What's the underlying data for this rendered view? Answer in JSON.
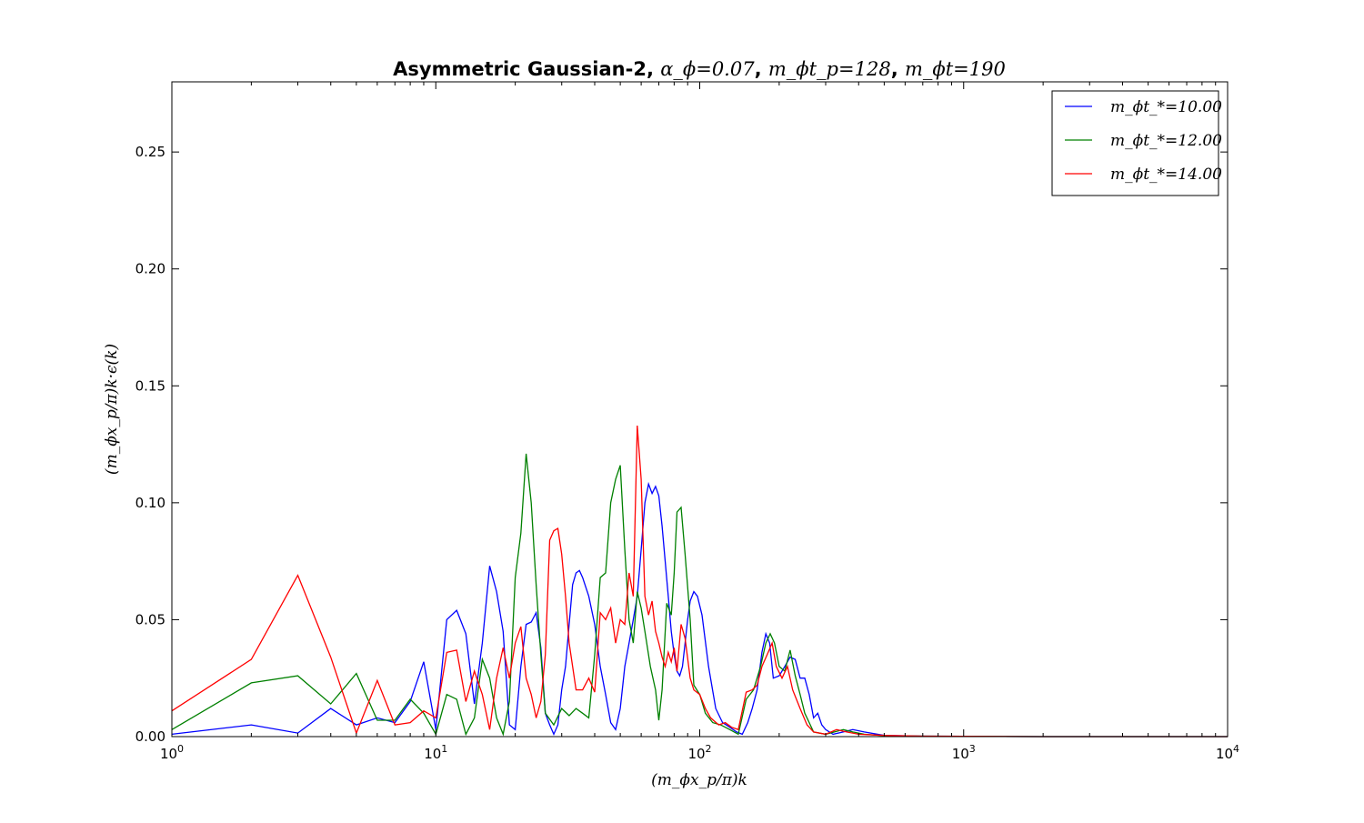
{
  "chart_data": {
    "type": "line",
    "title": "Asymmetric Gaussian-2, α_ϕ=0.07, m_ϕt_p=128, m_ϕt=190",
    "title_parts": {
      "prefix": "Asymmetric Gaussian-2, ",
      "param1": "α_ϕ=0.07",
      "sep1": ", ",
      "param2": "m_ϕt_p=128",
      "sep2": ", ",
      "param3": "m_ϕt=190"
    },
    "xlabel": "(m_ϕx_p/π)k",
    "ylabel": "(m_ϕx_p/π)k·ϵ(k)",
    "xscale": "log",
    "xlim": [
      1,
      10000
    ],
    "ylim": [
      0,
      0.28
    ],
    "x_ticks": [
      {
        "value": 1,
        "label": "10^0",
        "base": "10",
        "exp": "0"
      },
      {
        "value": 10,
        "label": "10^1",
        "base": "10",
        "exp": "1"
      },
      {
        "value": 100,
        "label": "10^2",
        "base": "10",
        "exp": "2"
      },
      {
        "value": 1000,
        "label": "10^3",
        "base": "10",
        "exp": "3"
      },
      {
        "value": 10000,
        "label": "10^4",
        "base": "10",
        "exp": "4"
      }
    ],
    "y_ticks": [
      {
        "value": 0.0,
        "label": "0.00"
      },
      {
        "value": 0.05,
        "label": "0.05"
      },
      {
        "value": 0.1,
        "label": "0.10"
      },
      {
        "value": 0.15,
        "label": "0.15"
      },
      {
        "value": 0.2,
        "label": "0.20"
      },
      {
        "value": 0.25,
        "label": "0.25"
      }
    ],
    "grid": false,
    "legend_position": "top-right",
    "series": [
      {
        "name": "m_ϕt_*=10.00",
        "color": "#0000ff",
        "points": [
          [
            1,
            0.001
          ],
          [
            2,
            0.005
          ],
          [
            3,
            0.0015
          ],
          [
            4,
            0.012
          ],
          [
            5,
            0.005
          ],
          [
            6,
            0.008
          ],
          [
            7,
            0.006
          ],
          [
            8,
            0.015
          ],
          [
            9,
            0.032
          ],
          [
            10,
            0.003
          ],
          [
            11,
            0.05
          ],
          [
            12,
            0.054
          ],
          [
            13,
            0.044
          ],
          [
            14,
            0.014
          ],
          [
            15,
            0.04
          ],
          [
            16,
            0.073
          ],
          [
            17,
            0.062
          ],
          [
            18,
            0.045
          ],
          [
            19,
            0.005
          ],
          [
            20,
            0.003
          ],
          [
            21,
            0.03
          ],
          [
            22,
            0.048
          ],
          [
            23,
            0.049
          ],
          [
            24,
            0.053
          ],
          [
            25,
            0.038
          ],
          [
            26,
            0.01
          ],
          [
            27,
            0.005
          ],
          [
            28,
            0.001
          ],
          [
            29,
            0.005
          ],
          [
            30,
            0.02
          ],
          [
            31,
            0.03
          ],
          [
            32,
            0.048
          ],
          [
            33,
            0.065
          ],
          [
            34,
            0.07
          ],
          [
            35,
            0.071
          ],
          [
            36,
            0.068
          ],
          [
            38,
            0.06
          ],
          [
            40,
            0.048
          ],
          [
            42,
            0.03
          ],
          [
            44,
            0.018
          ],
          [
            46,
            0.006
          ],
          [
            48,
            0.003
          ],
          [
            50,
            0.012
          ],
          [
            52,
            0.03
          ],
          [
            54,
            0.04
          ],
          [
            56,
            0.05
          ],
          [
            58,
            0.06
          ],
          [
            60,
            0.08
          ],
          [
            62,
            0.1
          ],
          [
            64,
            0.108
          ],
          [
            66,
            0.104
          ],
          [
            68,
            0.107
          ],
          [
            70,
            0.103
          ],
          [
            72,
            0.09
          ],
          [
            74,
            0.075
          ],
          [
            76,
            0.06
          ],
          [
            78,
            0.045
          ],
          [
            80,
            0.035
          ],
          [
            82,
            0.028
          ],
          [
            84,
            0.026
          ],
          [
            86,
            0.03
          ],
          [
            88,
            0.04
          ],
          [
            90,
            0.05
          ],
          [
            92,
            0.058
          ],
          [
            95,
            0.062
          ],
          [
            98,
            0.06
          ],
          [
            102,
            0.052
          ],
          [
            108,
            0.03
          ],
          [
            115,
            0.012
          ],
          [
            122,
            0.006
          ],
          [
            130,
            0.004
          ],
          [
            138,
            0.002
          ],
          [
            145,
            0.001
          ],
          [
            152,
            0.006
          ],
          [
            158,
            0.012
          ],
          [
            165,
            0.02
          ],
          [
            172,
            0.036
          ],
          [
            178,
            0.044
          ],
          [
            184,
            0.04
          ],
          [
            190,
            0.025
          ],
          [
            200,
            0.026
          ],
          [
            210,
            0.03
          ],
          [
            220,
            0.034
          ],
          [
            230,
            0.033
          ],
          [
            240,
            0.025
          ],
          [
            250,
            0.025
          ],
          [
            260,
            0.018
          ],
          [
            270,
            0.008
          ],
          [
            280,
            0.01
          ],
          [
            290,
            0.005
          ],
          [
            300,
            0.003
          ],
          [
            320,
            0.001
          ],
          [
            350,
            0.002
          ],
          [
            380,
            0.003
          ],
          [
            420,
            0.002
          ],
          [
            500,
            0.0005
          ],
          [
            700,
            0.0002
          ],
          [
            1000,
            0.0001
          ],
          [
            2000,
            0
          ],
          [
            10000,
            0
          ]
        ]
      },
      {
        "name": "m_ϕt_*=12.00",
        "color": "#008000",
        "points": [
          [
            1,
            0.003
          ],
          [
            2,
            0.023
          ],
          [
            3,
            0.026
          ],
          [
            4,
            0.014
          ],
          [
            5,
            0.027
          ],
          [
            6,
            0.007
          ],
          [
            7,
            0.007
          ],
          [
            8,
            0.016
          ],
          [
            9,
            0.01
          ],
          [
            10,
            0.001
          ],
          [
            11,
            0.018
          ],
          [
            12,
            0.016
          ],
          [
            13,
            0.001
          ],
          [
            14,
            0.008
          ],
          [
            15,
            0.033
          ],
          [
            16,
            0.025
          ],
          [
            17,
            0.008
          ],
          [
            18,
            0.001
          ],
          [
            19,
            0.015
          ],
          [
            20,
            0.068
          ],
          [
            21,
            0.087
          ],
          [
            22,
            0.121
          ],
          [
            23,
            0.1
          ],
          [
            24,
            0.065
          ],
          [
            25,
            0.035
          ],
          [
            26,
            0.01
          ],
          [
            28,
            0.005
          ],
          [
            30,
            0.012
          ],
          [
            32,
            0.009
          ],
          [
            34,
            0.012
          ],
          [
            36,
            0.01
          ],
          [
            38,
            0.008
          ],
          [
            40,
            0.035
          ],
          [
            42,
            0.068
          ],
          [
            44,
            0.07
          ],
          [
            46,
            0.1
          ],
          [
            48,
            0.11
          ],
          [
            50,
            0.116
          ],
          [
            52,
            0.08
          ],
          [
            54,
            0.05
          ],
          [
            56,
            0.04
          ],
          [
            58,
            0.062
          ],
          [
            60,
            0.055
          ],
          [
            62,
            0.045
          ],
          [
            65,
            0.03
          ],
          [
            68,
            0.02
          ],
          [
            70,
            0.007
          ],
          [
            72,
            0.02
          ],
          [
            75,
            0.057
          ],
          [
            78,
            0.052
          ],
          [
            80,
            0.07
          ],
          [
            82,
            0.096
          ],
          [
            85,
            0.098
          ],
          [
            88,
            0.078
          ],
          [
            92,
            0.05
          ],
          [
            95,
            0.022
          ],
          [
            100,
            0.018
          ],
          [
            105,
            0.01
          ],
          [
            112,
            0.006
          ],
          [
            120,
            0.005
          ],
          [
            130,
            0.003
          ],
          [
            140,
            0.001
          ],
          [
            150,
            0.016
          ],
          [
            160,
            0.02
          ],
          [
            170,
            0.03
          ],
          [
            178,
            0.04
          ],
          [
            185,
            0.044
          ],
          [
            192,
            0.04
          ],
          [
            200,
            0.03
          ],
          [
            210,
            0.028
          ],
          [
            220,
            0.037
          ],
          [
            230,
            0.026
          ],
          [
            240,
            0.018
          ],
          [
            250,
            0.01
          ],
          [
            260,
            0.006
          ],
          [
            270,
            0.002
          ],
          [
            300,
            0.001
          ],
          [
            350,
            0.003
          ],
          [
            380,
            0.002
          ],
          [
            420,
            0.001
          ],
          [
            500,
            0.0004
          ],
          [
            700,
            0.0002
          ],
          [
            1000,
            0.0001
          ],
          [
            2000,
            0
          ],
          [
            10000,
            0
          ]
        ]
      },
      {
        "name": "m_ϕt_*=14.00",
        "color": "#ff0000",
        "points": [
          [
            1,
            0.011
          ],
          [
            2,
            0.033
          ],
          [
            3,
            0.069
          ],
          [
            4,
            0.034
          ],
          [
            5,
            0.0015
          ],
          [
            6,
            0.024
          ],
          [
            7,
            0.005
          ],
          [
            8,
            0.006
          ],
          [
            9,
            0.011
          ],
          [
            10,
            0.008
          ],
          [
            11,
            0.036
          ],
          [
            12,
            0.037
          ],
          [
            13,
            0.015
          ],
          [
            14,
            0.028
          ],
          [
            15,
            0.018
          ],
          [
            16,
            0.003
          ],
          [
            17,
            0.025
          ],
          [
            18,
            0.038
          ],
          [
            19,
            0.025
          ],
          [
            20,
            0.04
          ],
          [
            21,
            0.047
          ],
          [
            22,
            0.025
          ],
          [
            23,
            0.018
          ],
          [
            24,
            0.008
          ],
          [
            25,
            0.015
          ],
          [
            26,
            0.035
          ],
          [
            27,
            0.084
          ],
          [
            28,
            0.088
          ],
          [
            29,
            0.089
          ],
          [
            30,
            0.078
          ],
          [
            31,
            0.06
          ],
          [
            32,
            0.04
          ],
          [
            34,
            0.02
          ],
          [
            36,
            0.02
          ],
          [
            38,
            0.025
          ],
          [
            40,
            0.019
          ],
          [
            42,
            0.053
          ],
          [
            44,
            0.05
          ],
          [
            46,
            0.055
          ],
          [
            48,
            0.04
          ],
          [
            50,
            0.05
          ],
          [
            52,
            0.048
          ],
          [
            54,
            0.07
          ],
          [
            56,
            0.06
          ],
          [
            58,
            0.133
          ],
          [
            60,
            0.11
          ],
          [
            62,
            0.06
          ],
          [
            64,
            0.052
          ],
          [
            66,
            0.058
          ],
          [
            68,
            0.045
          ],
          [
            70,
            0.04
          ],
          [
            72,
            0.034
          ],
          [
            74,
            0.03
          ],
          [
            76,
            0.036
          ],
          [
            78,
            0.032
          ],
          [
            80,
            0.038
          ],
          [
            82,
            0.028
          ],
          [
            85,
            0.048
          ],
          [
            88,
            0.042
          ],
          [
            92,
            0.025
          ],
          [
            95,
            0.02
          ],
          [
            100,
            0.018
          ],
          [
            105,
            0.012
          ],
          [
            110,
            0.008
          ],
          [
            118,
            0.005
          ],
          [
            125,
            0.006
          ],
          [
            132,
            0.004
          ],
          [
            140,
            0.003
          ],
          [
            150,
            0.019
          ],
          [
            158,
            0.02
          ],
          [
            165,
            0.022
          ],
          [
            172,
            0.03
          ],
          [
            180,
            0.035
          ],
          [
            188,
            0.04
          ],
          [
            195,
            0.03
          ],
          [
            205,
            0.025
          ],
          [
            215,
            0.03
          ],
          [
            225,
            0.02
          ],
          [
            240,
            0.012
          ],
          [
            255,
            0.005
          ],
          [
            270,
            0.002
          ],
          [
            300,
            0.001
          ],
          [
            330,
            0.003
          ],
          [
            360,
            0.002
          ],
          [
            400,
            0.001
          ],
          [
            500,
            0.0005
          ],
          [
            700,
            0.0002
          ],
          [
            1000,
            0.0001
          ],
          [
            2000,
            0
          ],
          [
            10000,
            0
          ]
        ]
      }
    ]
  }
}
